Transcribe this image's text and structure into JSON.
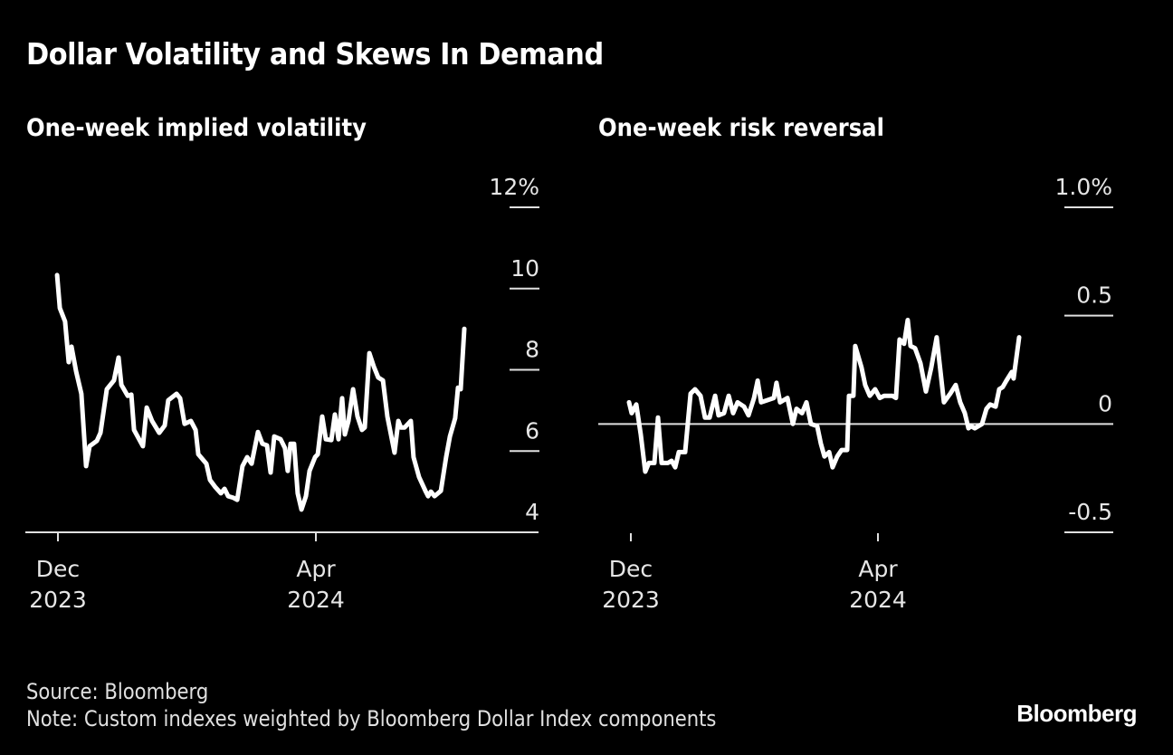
{
  "title": "Dollar Volatility and Skews In Demand",
  "footer": {
    "source": "Source: Bloomberg",
    "note": "Note: Custom indexes weighted by Bloomberg Dollar Index components",
    "logo": "Bloomberg"
  },
  "colors": {
    "background": "#000000",
    "line": "#ffffff",
    "grid": "#e6e6e6"
  },
  "chart_data": [
    {
      "type": "line",
      "title": "One-week implied volatility",
      "xlabel": "",
      "ylabel": "",
      "x_unit": "days since 2023-12-01",
      "xlim": [
        -15,
        227
      ],
      "ylim": [
        4,
        12
      ],
      "yticks": [
        4,
        6,
        8,
        10,
        12
      ],
      "ytick_labels": [
        "4",
        "6",
        "8",
        "10",
        "12%"
      ],
      "xticks": [
        0,
        122
      ],
      "xtick_labels": [
        [
          "Dec",
          "2023"
        ],
        [
          "Apr",
          "2024"
        ]
      ],
      "grid": true,
      "legend": "none",
      "series": [
        {
          "name": "One-week implied volatility",
          "x": [
            -0.4,
            0.9,
            3.4,
            5.1,
            6.4,
            8.6,
            11.1,
            13.3,
            15.0,
            18.4,
            20.1,
            23.1,
            26.5,
            28.7,
            30.0,
            33.0,
            34.7,
            36.0,
            40.2,
            42.0,
            44.5,
            47.9,
            50.5,
            52.2,
            56.1,
            57.8,
            59.9,
            62.9,
            65.1,
            66.4,
            70.2,
            71.9,
            74.5,
            77.1,
            78.8,
            80.5,
            83.0,
            84.8,
            87.3,
            89.5,
            91.6,
            94.6,
            96.7,
            98.9,
            100.6,
            102.3,
            105.3,
            107.4,
            108.7,
            110.0,
            111.7,
            113.4,
            115.2,
            117.3,
            119.0,
            121.6,
            122.9,
            125.0,
            126.7,
            129.3,
            131.0,
            132.7,
            134.4,
            135.7,
            137.4,
            139.6,
            141.7,
            143.8,
            145.1,
            147.3,
            149.4,
            151.5,
            153.7,
            155.8,
            159.2,
            161.0,
            162.2,
            164.0,
            166.9,
            168.2,
            170.8,
            173.8,
            175.1,
            176.4,
            178.1,
            181.1,
            183.6,
            185.4,
            187.9,
            189.2,
            190.5,
            192.2
          ],
          "values": [
            10.33,
            9.52,
            9.19,
            8.19,
            8.57,
            7.96,
            7.41,
            5.63,
            6.12,
            6.25,
            6.45,
            7.52,
            7.74,
            8.3,
            7.63,
            7.36,
            7.39,
            6.52,
            6.12,
            7.07,
            6.74,
            6.45,
            6.63,
            7.25,
            7.41,
            7.3,
            6.67,
            6.74,
            6.52,
            5.92,
            5.69,
            5.29,
            5.11,
            4.96,
            5.07,
            4.89,
            4.85,
            4.8,
            5.63,
            5.85,
            5.69,
            6.47,
            6.18,
            6.14,
            5.47,
            6.36,
            6.29,
            6.07,
            5.51,
            6.18,
            6.18,
            4.96,
            4.56,
            4.89,
            5.51,
            5.85,
            5.92,
            6.85,
            6.29,
            6.27,
            6.9,
            6.29,
            7.3,
            6.41,
            6.74,
            7.52,
            6.85,
            6.52,
            6.58,
            8.41,
            8.08,
            7.81,
            7.74,
            6.85,
            5.96,
            6.74,
            6.58,
            6.58,
            6.74,
            5.85,
            5.36,
            5.02,
            4.89,
            5.0,
            4.89,
            5.02,
            5.85,
            6.36,
            6.81,
            7.56,
            7.52,
            9.01
          ]
        }
      ]
    },
    {
      "type": "line",
      "title": "One-week risk reversal",
      "xlabel": "",
      "ylabel": "",
      "x_unit": "days since 2023-12-01",
      "xlim": [
        -16,
        216
      ],
      "ylim": [
        -0.5,
        1.0
      ],
      "yticks": [
        -0.5,
        0,
        0.5,
        1.0
      ],
      "ytick_labels": [
        "-0.5",
        "0",
        "0.5",
        "1.0%"
      ],
      "xticks": [
        0,
        122
      ],
      "xtick_labels": [
        [
          "Dec",
          "2023"
        ],
        [
          "Apr",
          "2024"
        ]
      ],
      "grid": true,
      "zero_line": true,
      "legend": "none",
      "series": [
        {
          "name": "One-week risk reversal",
          "x": [
            -0.9,
            0.4,
            2.7,
            4.9,
            7.1,
            8.9,
            11.6,
            13.4,
            15.2,
            18.3,
            20.1,
            21.9,
            23.7,
            26.8,
            28.2,
            29.5,
            31.7,
            34.4,
            36.6,
            38.9,
            41.6,
            43.3,
            46.0,
            48.3,
            50.5,
            52.7,
            55.9,
            58.1,
            60.8,
            62.6,
            64.3,
            67.5,
            70.6,
            71.9,
            73.7,
            77.3,
            80.0,
            81.8,
            84.5,
            86.7,
            88.9,
            92.0,
            93.8,
            95.6,
            97.9,
            99.6,
            101.9,
            104.1,
            106.8,
            107.7,
            109.9,
            110.8,
            113.9,
            115.7,
            118.0,
            120.6,
            122.9,
            125.1,
            129.1,
            130.9,
            132.7,
            134.9,
            136.7,
            138.1,
            140.3,
            143.0,
            145.7,
            148.3,
            151.0,
            154.6,
            157.7,
            160.4,
            162.6,
            164.9,
            166.7,
            168.0,
            169.8,
            173.4,
            175.6,
            177.4,
            180.1,
            181.9,
            183.6,
            185.4,
            188.1,
            189.0,
            191.7
          ],
          "values": [
            0.1,
            0.05,
            0.09,
            -0.05,
            -0.22,
            -0.18,
            -0.18,
            0.03,
            -0.18,
            -0.18,
            -0.17,
            -0.2,
            -0.13,
            -0.13,
            0.01,
            0.14,
            0.16,
            0.13,
            0.03,
            0.03,
            0.13,
            0.04,
            0.05,
            0.13,
            0.05,
            0.1,
            0.08,
            0.04,
            0.12,
            0.2,
            0.1,
            0.11,
            0.12,
            0.19,
            0.1,
            0.12,
            0.0,
            0.07,
            0.05,
            0.1,
            0.0,
            -0.01,
            -0.09,
            -0.15,
            -0.13,
            -0.2,
            -0.15,
            -0.12,
            -0.12,
            0.13,
            0.13,
            0.36,
            0.26,
            0.18,
            0.13,
            0.16,
            0.12,
            0.13,
            0.13,
            0.12,
            0.39,
            0.37,
            0.48,
            0.36,
            0.35,
            0.28,
            0.15,
            0.26,
            0.4,
            0.1,
            0.14,
            0.18,
            0.1,
            0.05,
            -0.02,
            -0.01,
            -0.02,
            0.0,
            0.07,
            0.09,
            0.08,
            0.16,
            0.17,
            0.2,
            0.24,
            0.21,
            0.4
          ]
        }
      ]
    }
  ]
}
